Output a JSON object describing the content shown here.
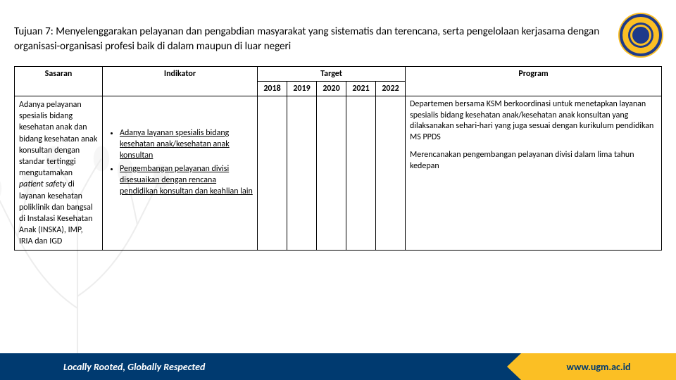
{
  "title": "Tujuan 7: Menyelenggarakan pelayanan dan pengabdian masyarakat yang sistematis dan terencana, serta pengelolaan kerjasama dengan organisasi-organisasi profesi baik di dalam maupun di luar negeri",
  "headers": {
    "sasaran": "Sasaran",
    "indikator": "Indikator",
    "target": "Target",
    "program": "Program",
    "years": [
      "2018",
      "2019",
      "2020",
      "2021",
      "2022"
    ]
  },
  "row": {
    "sasaran_html": "Adanya pelayanan spesialis bidang kesehatan anak dan bidang kesehatan anak konsultan dengan standar tertinggi mengutamakan <em>patient safety</em> di layanan kesehatan poliklinik dan bangsal di Instalasi Kesehatan Anak (INSKA), IMP, IRIA dan IGD",
    "indikator": [
      "Adanya layanan spesialis bidang kesehatan anak/kesehatan anak konsultan",
      "Pengembangan pelayanan divisi disesuaikan dengan rencana pendidikan konsultan dan keahlian lain"
    ],
    "program": [
      "Departemen bersama KSM berkoordinasi untuk menetapkan layanan spesialis bidang kesehatan anak/kesehatan anak konsultan yang dilaksanakan sehari-hari yang juga sesuai dengan kurikulum pendidikan MS PPDS",
      "Merencanakan pengembangan pelayanan divisi dalam lima tahun kedepan"
    ]
  },
  "footer": {
    "tagline": "Locally Rooted, Globally Respected",
    "url": "www.ugm.ac.id"
  },
  "colors": {
    "footer_blue": "#003a70",
    "footer_yellow": "#fbbf24"
  }
}
